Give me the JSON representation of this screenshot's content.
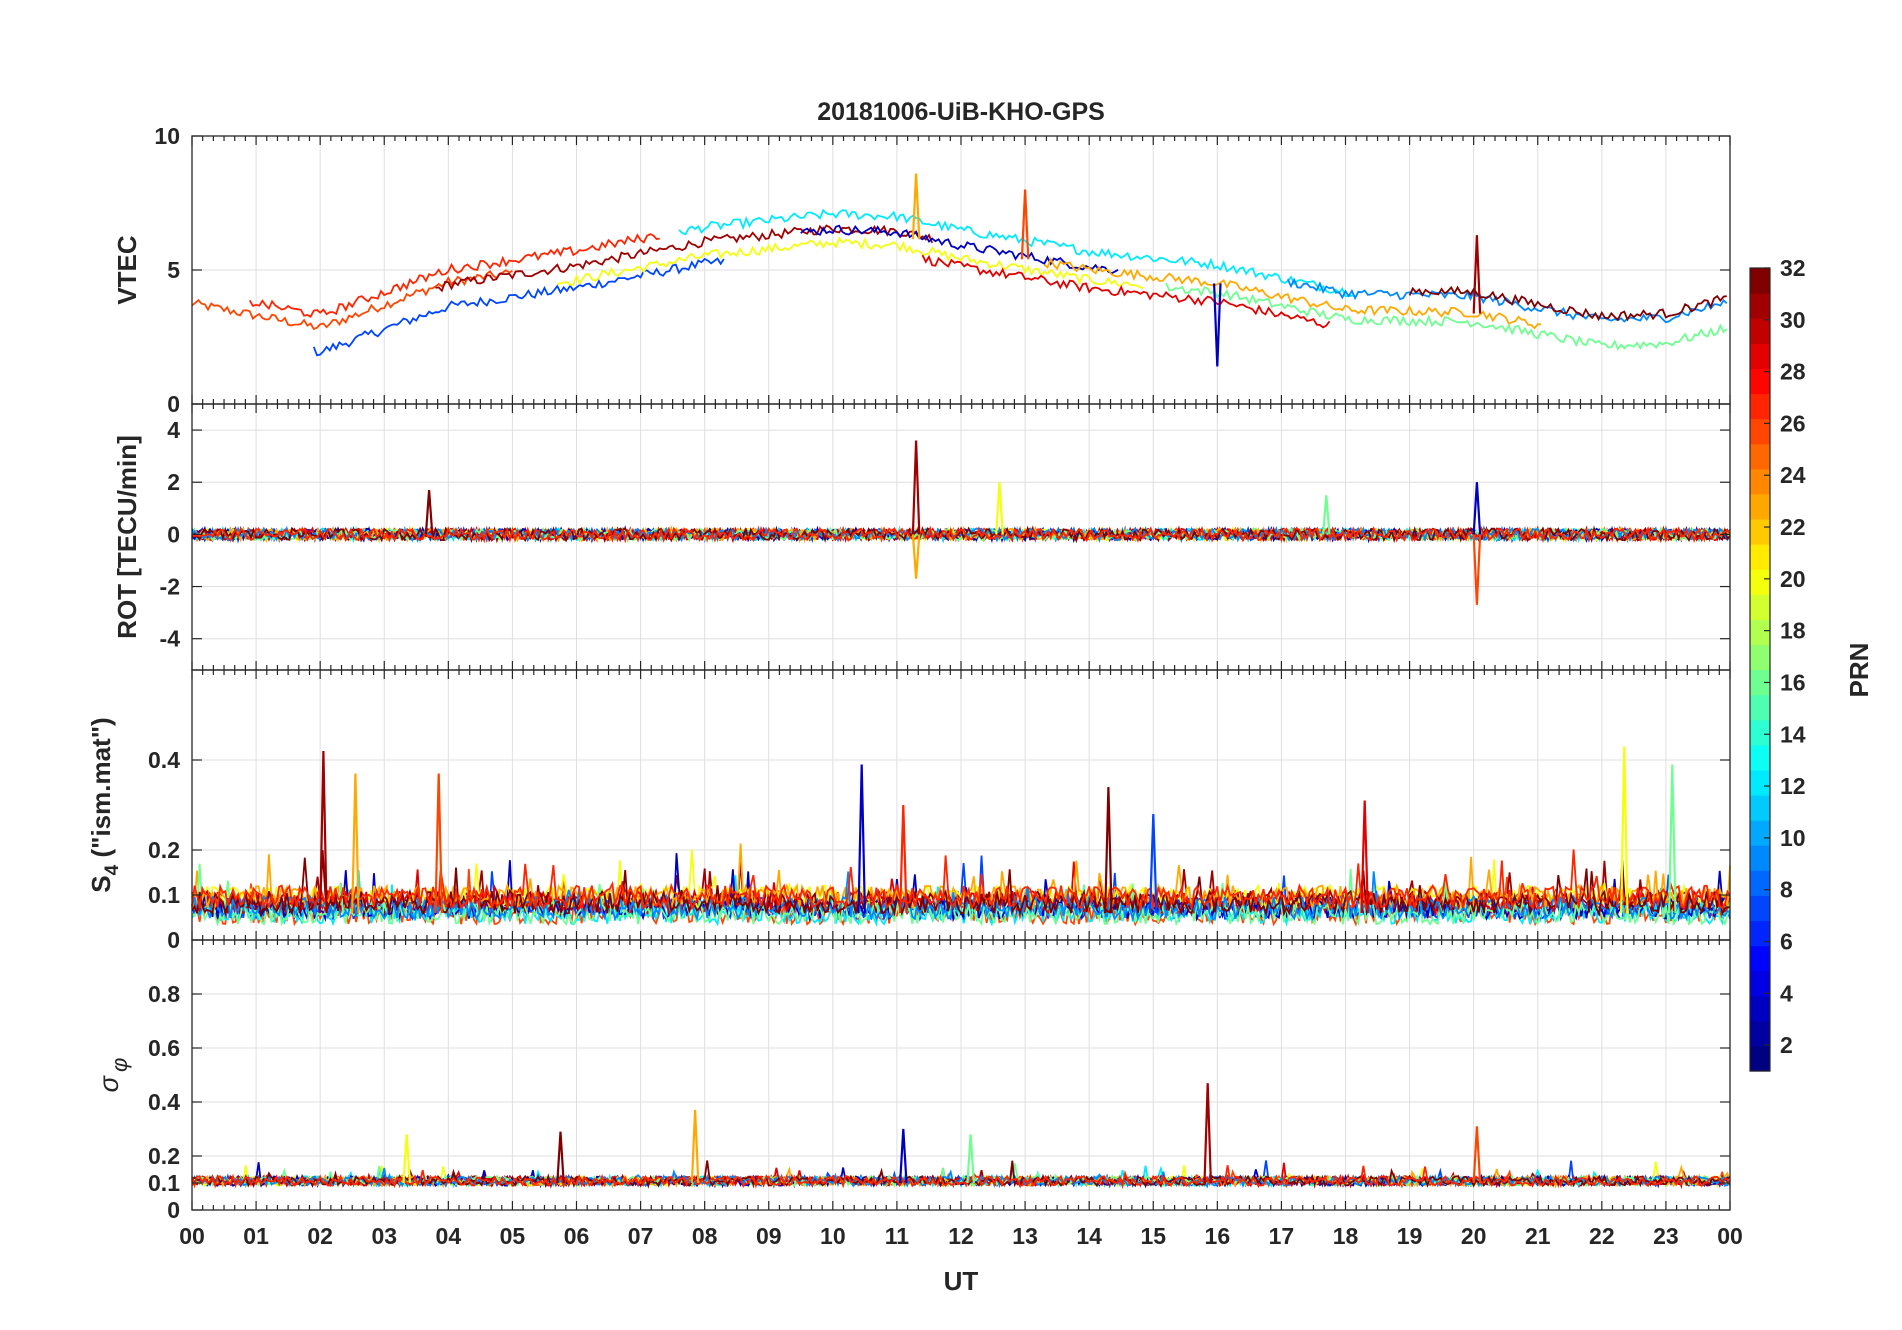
{
  "title": "20181006-UiB-KHO-GPS",
  "chart_data": {
    "type": "line",
    "title": "20181006-UiB-KHO-GPS",
    "xlabel": "UT",
    "x_ticks": [
      "00",
      "01",
      "02",
      "03",
      "04",
      "05",
      "06",
      "07",
      "08",
      "09",
      "10",
      "11",
      "12",
      "13",
      "14",
      "15",
      "16",
      "17",
      "18",
      "19",
      "20",
      "21",
      "22",
      "23",
      "00"
    ],
    "xlim_hours": [
      0,
      24
    ],
    "colorbar": {
      "label": "PRN",
      "range": [
        1,
        32
      ],
      "ticks": [
        "2",
        "4",
        "6",
        "8",
        "10",
        "12",
        "14",
        "16",
        "18",
        "20",
        "22",
        "24",
        "26",
        "28",
        "30",
        "32"
      ],
      "colormap": "jet"
    },
    "panels": [
      {
        "id": "vtec",
        "ylabel": "VTEC",
        "ylim": [
          0,
          10
        ],
        "y_ticks": [
          "0",
          "5",
          "10"
        ],
        "y_tick_values": [
          0,
          5,
          10
        ],
        "trend": {
          "hours": [
            0,
            2,
            4,
            6,
            8,
            10,
            11,
            12,
            14,
            16,
            18,
            20,
            22,
            23,
            24
          ],
          "values": [
            3.5,
            2.6,
            4.3,
            5.0,
            5.9,
            6.4,
            6.3,
            5.8,
            5.0,
            4.5,
            3.5,
            3.4,
            2.5,
            2.6,
            3.2
          ]
        },
        "spikes": [
          {
            "hour": 20.05,
            "value": 6.3
          },
          {
            "hour": 11.3,
            "value": 8.6
          },
          {
            "hour": 13.0,
            "value": 8.0
          },
          {
            "hour": 16.0,
            "value": 1.4
          }
        ]
      },
      {
        "id": "rot",
        "ylabel": "ROT [TECU/min]",
        "ylim": [
          -5.2,
          5
        ],
        "y_ticks": [
          "-4",
          "-2",
          "0",
          "2",
          "4"
        ],
        "y_tick_values": [
          -4,
          -2,
          0,
          2,
          4
        ],
        "spikes": [
          {
            "hour": 11.3,
            "value": 3.6
          },
          {
            "hour": 11.3,
            "value": -1.7
          },
          {
            "hour": 20.05,
            "value": -2.7
          },
          {
            "hour": 20.05,
            "value": 2.0
          },
          {
            "hour": 3.7,
            "value": 1.7
          },
          {
            "hour": 12.6,
            "value": 2.0
          },
          {
            "hour": 17.7,
            "value": 1.5
          }
        ]
      },
      {
        "id": "s4",
        "ylabel": "S4 (\"ism.mat\")",
        "ylabel_main": "S",
        "ylabel_sub": "4",
        "ylabel_rest": " (\"ism.mat\")",
        "ylim": [
          0,
          0.6
        ],
        "y_ticks": [
          "0",
          "0.1",
          "0.2",
          "0.4"
        ],
        "y_tick_values": [
          0,
          0.1,
          0.2,
          0.4
        ],
        "spikes": [
          {
            "hour": 2.05,
            "value": 0.42
          },
          {
            "hour": 2.55,
            "value": 0.37
          },
          {
            "hour": 3.85,
            "value": 0.37
          },
          {
            "hour": 10.45,
            "value": 0.39
          },
          {
            "hour": 14.3,
            "value": 0.34
          },
          {
            "hour": 22.35,
            "value": 0.43
          },
          {
            "hour": 23.1,
            "value": 0.39
          },
          {
            "hour": 15.0,
            "value": 0.28
          },
          {
            "hour": 18.3,
            "value": 0.31
          },
          {
            "hour": 11.1,
            "value": 0.3
          }
        ]
      },
      {
        "id": "sigma_phi",
        "ylabel": "σ φ",
        "ylabel_main": "σ",
        "ylabel_sub": "φ",
        "ylim": [
          0,
          1
        ],
        "y_ticks": [
          "0",
          "0.1",
          "0.2",
          "0.4",
          "0.6",
          "0.8"
        ],
        "y_tick_values": [
          0,
          0.1,
          0.2,
          0.4,
          0.6,
          0.8
        ],
        "spikes": [
          {
            "hour": 15.85,
            "value": 0.47
          },
          {
            "hour": 7.85,
            "value": 0.37
          },
          {
            "hour": 20.05,
            "value": 0.31
          },
          {
            "hour": 11.1,
            "value": 0.3
          },
          {
            "hour": 5.75,
            "value": 0.29
          },
          {
            "hour": 3.35,
            "value": 0.28
          },
          {
            "hour": 12.15,
            "value": 0.28
          }
        ]
      }
    ]
  }
}
